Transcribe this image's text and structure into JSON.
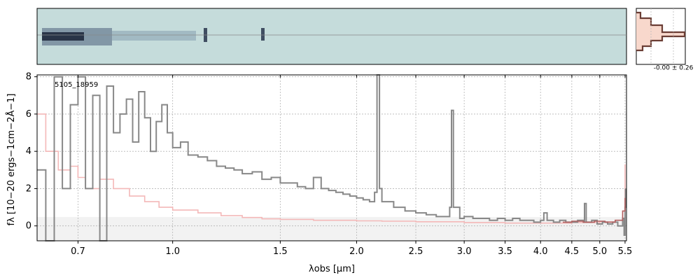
{
  "chart_data": {
    "type": "line",
    "object_label": "5105_18959",
    "xlabel": "λobs [μm]",
    "ylabel": "fλ [10−20 ergs−1cm−2Å−1]",
    "xlim": [
      0.6,
      5.53
    ],
    "ylim": [
      -0.8,
      8.1
    ],
    "x_ticks": [
      0.7,
      1.0,
      1.5,
      2.0,
      2.5,
      3.0,
      3.5,
      4.0,
      4.5,
      5.0,
      5.5
    ],
    "x_tick_labels": [
      "0.7",
      "1.0",
      "1.5",
      "2.0",
      "2.5",
      "3.0",
      "3.5",
      "4.0",
      "4.5",
      "5.0",
      "5.5"
    ],
    "y_ticks": [
      0,
      2,
      4,
      6,
      8
    ],
    "y_tick_labels": [
      "0",
      "2",
      "4",
      "6",
      "8"
    ],
    "grid": true,
    "series": [
      {
        "color": "#888888",
        "points": [
          [
            0.6,
            3.0
          ],
          [
            0.62,
            -0.8
          ],
          [
            0.64,
            8.0
          ],
          [
            0.66,
            2.0
          ],
          [
            0.68,
            6.5
          ],
          [
            0.7,
            8.0
          ],
          [
            0.72,
            2.0
          ],
          [
            0.74,
            7.0
          ],
          [
            0.76,
            -0.8
          ],
          [
            0.78,
            7.5
          ],
          [
            0.8,
            5.0
          ],
          [
            0.82,
            6.0
          ],
          [
            0.84,
            6.8
          ],
          [
            0.86,
            4.5
          ],
          [
            0.88,
            7.2
          ],
          [
            0.9,
            5.8
          ],
          [
            0.92,
            4.0
          ],
          [
            0.94,
            5.6
          ],
          [
            0.96,
            6.5
          ],
          [
            0.98,
            5.0
          ],
          [
            1.0,
            4.2
          ],
          [
            1.03,
            4.5
          ],
          [
            1.06,
            3.8
          ],
          [
            1.1,
            3.7
          ],
          [
            1.14,
            3.5
          ],
          [
            1.18,
            3.2
          ],
          [
            1.22,
            3.1
          ],
          [
            1.26,
            3.0
          ],
          [
            1.3,
            2.8
          ],
          [
            1.35,
            2.9
          ],
          [
            1.4,
            2.5
          ],
          [
            1.45,
            2.6
          ],
          [
            1.5,
            2.3
          ],
          [
            1.55,
            2.3
          ],
          [
            1.6,
            2.1
          ],
          [
            1.65,
            2.0
          ],
          [
            1.7,
            2.6
          ],
          [
            1.75,
            2.0
          ],
          [
            1.8,
            1.9
          ],
          [
            1.85,
            1.8
          ],
          [
            1.9,
            1.7
          ],
          [
            1.95,
            1.6
          ],
          [
            2.0,
            1.5
          ],
          [
            2.05,
            1.4
          ],
          [
            2.1,
            1.3
          ],
          [
            2.14,
            1.8
          ],
          [
            2.16,
            8.1
          ],
          [
            2.18,
            2.0
          ],
          [
            2.2,
            1.3
          ],
          [
            2.3,
            1.0
          ],
          [
            2.4,
            0.8
          ],
          [
            2.5,
            0.7
          ],
          [
            2.6,
            0.6
          ],
          [
            2.7,
            0.5
          ],
          [
            2.8,
            0.5
          ],
          [
            2.84,
            1.0
          ],
          [
            2.86,
            6.2
          ],
          [
            2.88,
            1.0
          ],
          [
            2.95,
            0.4
          ],
          [
            3.0,
            0.5
          ],
          [
            3.1,
            0.4
          ],
          [
            3.2,
            0.4
          ],
          [
            3.3,
            0.3
          ],
          [
            3.4,
            0.4
          ],
          [
            3.5,
            0.3
          ],
          [
            3.6,
            0.4
          ],
          [
            3.7,
            0.3
          ],
          [
            3.8,
            0.3
          ],
          [
            3.9,
            0.2
          ],
          [
            4.0,
            0.3
          ],
          [
            4.05,
            0.7
          ],
          [
            4.1,
            0.3
          ],
          [
            4.2,
            0.2
          ],
          [
            4.3,
            0.3
          ],
          [
            4.4,
            0.2
          ],
          [
            4.5,
            0.2
          ],
          [
            4.6,
            0.3
          ],
          [
            4.7,
            0.2
          ],
          [
            4.72,
            1.2
          ],
          [
            4.75,
            0.2
          ],
          [
            4.85,
            0.3
          ],
          [
            4.95,
            0.1
          ],
          [
            5.05,
            0.2
          ],
          [
            5.15,
            0.1
          ],
          [
            5.25,
            0.2
          ],
          [
            5.35,
            0.0
          ],
          [
            5.45,
            0.4
          ],
          [
            5.48,
            -0.5
          ],
          [
            5.5,
            1.0
          ],
          [
            5.51,
            2.0
          ]
        ]
      },
      {
        "color": "#f4b8b8",
        "points": [
          [
            0.6,
            6.0
          ],
          [
            0.62,
            4.0
          ],
          [
            0.65,
            3.0
          ],
          [
            0.68,
            3.2
          ],
          [
            0.7,
            2.6
          ],
          [
            0.72,
            2.0
          ],
          [
            0.76,
            2.5
          ],
          [
            0.8,
            2.0
          ],
          [
            0.85,
            1.6
          ],
          [
            0.9,
            1.3
          ],
          [
            0.95,
            1.0
          ],
          [
            1.0,
            0.85
          ],
          [
            1.1,
            0.7
          ],
          [
            1.2,
            0.55
          ],
          [
            1.3,
            0.45
          ],
          [
            1.4,
            0.38
          ],
          [
            1.5,
            0.35
          ],
          [
            1.7,
            0.3
          ],
          [
            2.0,
            0.27
          ],
          [
            2.2,
            0.25
          ],
          [
            2.5,
            0.22
          ],
          [
            3.0,
            0.18
          ],
          [
            3.5,
            0.15
          ],
          [
            4.0,
            0.15
          ],
          [
            4.5,
            0.18
          ],
          [
            5.0,
            0.22
          ],
          [
            5.3,
            0.3
          ],
          [
            5.45,
            0.8
          ],
          [
            5.5,
            3.3
          ]
        ]
      },
      {
        "color": "#b06060",
        "points": [
          [
            4.35,
            0.2
          ],
          [
            4.5,
            0.25
          ],
          [
            4.7,
            0.2
          ],
          [
            4.9,
            0.25
          ],
          [
            5.1,
            0.2
          ],
          [
            5.3,
            0.3
          ],
          [
            5.45,
            0.8
          ],
          [
            5.5,
            1.5
          ]
        ]
      }
    ],
    "inset": {
      "label": "-0.00 ± 0.26"
    }
  }
}
